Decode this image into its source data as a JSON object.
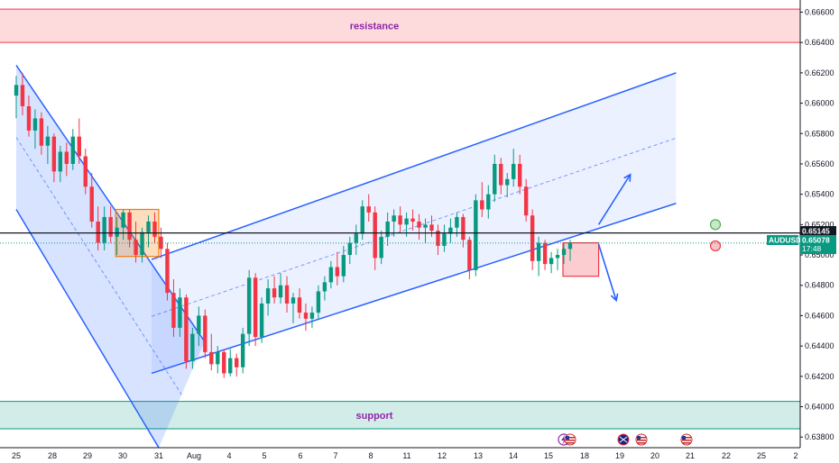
{
  "chart_data": {
    "type": "candlestick",
    "symbol": "AUDUSD",
    "price_axis": {
      "range": [
        0.6373,
        0.6668
      ],
      "ticks": [
        "0.66600",
        "0.66400",
        "0.66200",
        "0.66000",
        "0.65800",
        "0.65600",
        "0.65400",
        "0.65200",
        "0.65000",
        "0.64800",
        "0.64600",
        "0.64400",
        "0.64200",
        "0.64000",
        "0.63800"
      ]
    },
    "time_axis": {
      "labels": [
        "25",
        "28",
        "29",
        "30",
        "31",
        "Aug",
        "4",
        "5",
        "6",
        "7",
        "8",
        "11",
        "12",
        "13",
        "14",
        "15",
        "18",
        "19",
        "20",
        "21",
        "22",
        "25",
        "2"
      ]
    },
    "zones": {
      "resistance": {
        "label": "resistance",
        "low": 0.664,
        "high": 0.6662,
        "color": "#f23645"
      },
      "support": {
        "label": "support",
        "low": 0.63855,
        "high": 0.64035,
        "color": "#089981"
      }
    },
    "horizontal_line": {
      "price": 0.65145
    },
    "current_price": 0.65078,
    "price_tags": {
      "level": "0.65145",
      "symbol": "AUDUSD",
      "last": "0.65078",
      "countdown": "17:48",
      "hidden_partial": "0.65000"
    },
    "channels": [
      {
        "name": "descending",
        "upper": [
          [
            0.0,
            0.6625
          ],
          [
            5.3,
            0.6443
          ]
        ],
        "lower": [
          [
            0.0,
            0.653
          ],
          [
            4.0,
            0.6373
          ]
        ]
      },
      {
        "name": "ascending",
        "upper": [
          [
            3.8,
            0.6497
          ],
          [
            18.6,
            0.662
          ]
        ],
        "lower": [
          [
            3.8,
            0.6422
          ],
          [
            18.6,
            0.6534
          ]
        ]
      }
    ],
    "boxes": [
      {
        "from": 2.8,
        "to": 4.0,
        "high": 0.653,
        "low": 0.6499,
        "color": "#f57c00"
      },
      {
        "from": 15.4,
        "to": 16.4,
        "high": 0.6508,
        "low": 0.6486,
        "color": "#f23645"
      }
    ],
    "markers": [
      {
        "x": 19.7,
        "price": 0.652,
        "color": "#4caf50"
      },
      {
        "x": 19.7,
        "price": 0.6506,
        "color": "#f23645"
      }
    ],
    "arrows": [
      {
        "from": [
          16.4,
          0.652
        ],
        "to": [
          17.3,
          0.6553
        ]
      },
      {
        "from": [
          16.4,
          0.6507
        ],
        "to": [
          16.9,
          0.647
        ]
      }
    ],
    "candles": [
      [
        0.6605,
        0.6618,
        0.659,
        0.6612
      ],
      [
        0.6612,
        0.662,
        0.6592,
        0.6598
      ],
      [
        0.6598,
        0.6605,
        0.6578,
        0.6582
      ],
      [
        0.6582,
        0.6596,
        0.657,
        0.659
      ],
      [
        0.659,
        0.6594,
        0.6566,
        0.6572
      ],
      [
        0.6572,
        0.6585,
        0.656,
        0.6578
      ],
      [
        0.6578,
        0.658,
        0.6548,
        0.6555
      ],
      [
        0.6555,
        0.6572,
        0.6548,
        0.6568
      ],
      [
        0.6568,
        0.6574,
        0.6552,
        0.656
      ],
      [
        0.656,
        0.6583,
        0.6556,
        0.6578
      ],
      [
        0.6578,
        0.659,
        0.656,
        0.6565
      ],
      [
        0.6565,
        0.657,
        0.654,
        0.6545
      ],
      [
        0.6545,
        0.6554,
        0.6518,
        0.6522
      ],
      [
        0.6522,
        0.6532,
        0.6503,
        0.6508
      ],
      [
        0.6508,
        0.6532,
        0.6503,
        0.6525
      ],
      [
        0.6525,
        0.6532,
        0.6508,
        0.6512
      ],
      [
        0.6512,
        0.6525,
        0.65,
        0.6518
      ],
      [
        0.6518,
        0.653,
        0.651,
        0.6528
      ],
      [
        0.6528,
        0.653,
        0.6505,
        0.651
      ],
      [
        0.651,
        0.6522,
        0.6495,
        0.65
      ],
      [
        0.65,
        0.6518,
        0.6495,
        0.6515
      ],
      [
        0.6515,
        0.6526,
        0.6505,
        0.6522
      ],
      [
        0.6522,
        0.6528,
        0.6508,
        0.6512
      ],
      [
        0.6512,
        0.6518,
        0.6498,
        0.6504
      ],
      [
        0.6504,
        0.6508,
        0.647,
        0.6475
      ],
      [
        0.6475,
        0.6484,
        0.6446,
        0.6452
      ],
      [
        0.6452,
        0.6478,
        0.6446,
        0.6472
      ],
      [
        0.6472,
        0.6474,
        0.6425,
        0.643
      ],
      [
        0.643,
        0.6452,
        0.6425,
        0.6448
      ],
      [
        0.6448,
        0.6466,
        0.644,
        0.646
      ],
      [
        0.646,
        0.6464,
        0.6432,
        0.6436
      ],
      [
        0.6436,
        0.6448,
        0.6424,
        0.6428
      ],
      [
        0.6428,
        0.644,
        0.6422,
        0.6436
      ],
      [
        0.6436,
        0.6438,
        0.6419,
        0.6422
      ],
      [
        0.6422,
        0.6438,
        0.642,
        0.6432
      ],
      [
        0.6432,
        0.6435,
        0.642,
        0.6426
      ],
      [
        0.6426,
        0.6452,
        0.6422,
        0.6448
      ],
      [
        0.6448,
        0.649,
        0.644,
        0.6485
      ],
      [
        0.6485,
        0.6488,
        0.644,
        0.6446
      ],
      [
        0.6446,
        0.6472,
        0.6442,
        0.6468
      ],
      [
        0.6468,
        0.6484,
        0.646,
        0.6478
      ],
      [
        0.6478,
        0.6486,
        0.6468,
        0.6472
      ],
      [
        0.6472,
        0.6488,
        0.6468,
        0.648
      ],
      [
        0.648,
        0.6486,
        0.6462,
        0.6468
      ],
      [
        0.6468,
        0.6475,
        0.6455,
        0.6472
      ],
      [
        0.6472,
        0.6478,
        0.6458,
        0.6462
      ],
      [
        0.6462,
        0.6468,
        0.645,
        0.6458
      ],
      [
        0.6458,
        0.6466,
        0.6452,
        0.6462
      ],
      [
        0.6462,
        0.648,
        0.6458,
        0.6476
      ],
      [
        0.6476,
        0.6486,
        0.647,
        0.6482
      ],
      [
        0.6482,
        0.6496,
        0.6478,
        0.6492
      ],
      [
        0.6492,
        0.6502,
        0.648,
        0.6486
      ],
      [
        0.6486,
        0.6506,
        0.6482,
        0.65
      ],
      [
        0.65,
        0.6512,
        0.6494,
        0.6508
      ],
      [
        0.6508,
        0.652,
        0.65,
        0.6514
      ],
      [
        0.6514,
        0.6536,
        0.651,
        0.6532
      ],
      [
        0.6532,
        0.654,
        0.6522,
        0.6528
      ],
      [
        0.6528,
        0.6532,
        0.649,
        0.6498
      ],
      [
        0.6498,
        0.6516,
        0.6494,
        0.6512
      ],
      [
        0.6512,
        0.6528,
        0.6506,
        0.6522
      ],
      [
        0.6522,
        0.653,
        0.6512,
        0.6526
      ],
      [
        0.6526,
        0.6532,
        0.6515,
        0.652
      ],
      [
        0.652,
        0.6528,
        0.6512,
        0.6524
      ],
      [
        0.6524,
        0.653,
        0.6516,
        0.6522
      ],
      [
        0.6522,
        0.6527,
        0.651,
        0.6518
      ],
      [
        0.6518,
        0.6524,
        0.6508,
        0.652
      ],
      [
        0.652,
        0.6526,
        0.6512,
        0.6516
      ],
      [
        0.6516,
        0.652,
        0.65,
        0.6506
      ],
      [
        0.6506,
        0.652,
        0.6502,
        0.6514
      ],
      [
        0.6514,
        0.6524,
        0.6508,
        0.6518
      ],
      [
        0.6518,
        0.6528,
        0.6512,
        0.6525
      ],
      [
        0.6525,
        0.6527,
        0.6505,
        0.651
      ],
      [
        0.651,
        0.6512,
        0.6484,
        0.649
      ],
      [
        0.649,
        0.654,
        0.6486,
        0.6536
      ],
      [
        0.6536,
        0.6548,
        0.6525,
        0.653
      ],
      [
        0.653,
        0.6546,
        0.6524,
        0.654
      ],
      [
        0.654,
        0.6566,
        0.6535,
        0.656
      ],
      [
        0.656,
        0.6564,
        0.654,
        0.6546
      ],
      [
        0.6546,
        0.6554,
        0.6538,
        0.655
      ],
      [
        0.655,
        0.657,
        0.6545,
        0.656
      ],
      [
        0.656,
        0.6566,
        0.654,
        0.6545
      ],
      [
        0.6545,
        0.655,
        0.6522,
        0.6526
      ],
      [
        0.6526,
        0.653,
        0.649,
        0.6496
      ],
      [
        0.6496,
        0.6512,
        0.6486,
        0.6508
      ],
      [
        0.6508,
        0.651,
        0.649,
        0.6494
      ],
      [
        0.6494,
        0.6502,
        0.6488,
        0.6498
      ],
      [
        0.6498,
        0.6504,
        0.649,
        0.65
      ],
      [
        0.65,
        0.6508,
        0.6494,
        0.6504
      ],
      [
        0.6504,
        0.651,
        0.6496,
        0.6508
      ]
    ]
  }
}
